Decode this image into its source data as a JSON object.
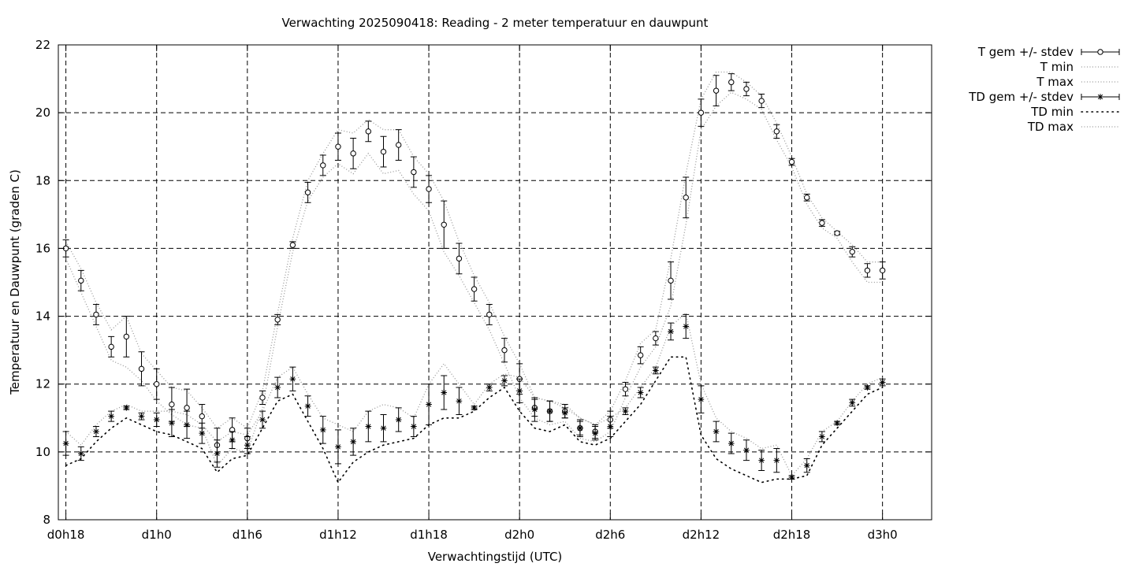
{
  "chart_data": {
    "type": "line",
    "title": "Verwachting 2025090418: Reading - 2 meter temperatuur en dauwpunt",
    "xlabel": "Verwachtingstijd (UTC)",
    "ylabel": "Temperatuur en Dauwpunt (graden C)",
    "xlim": [
      17.5,
      75.25
    ],
    "ylim": [
      8,
      22
    ],
    "x_ticks": [
      {
        "x": 18,
        "label": "d0h18"
      },
      {
        "x": 24,
        "label": "d1h0"
      },
      {
        "x": 30,
        "label": "d1h6"
      },
      {
        "x": 36,
        "label": "d1h12"
      },
      {
        "x": 42,
        "label": "d1h18"
      },
      {
        "x": 48,
        "label": "d2h0"
      },
      {
        "x": 54,
        "label": "d2h6"
      },
      {
        "x": 60,
        "label": "d2h12"
      },
      {
        "x": 66,
        "label": "d2h18"
      },
      {
        "x": 72,
        "label": "d3h0"
      }
    ],
    "y_ticks": [
      8,
      10,
      12,
      14,
      16,
      18,
      20,
      22
    ],
    "grid": true,
    "legend_position": "outside-right",
    "x": [
      18,
      19,
      20,
      21,
      22,
      23,
      24,
      25,
      26,
      27,
      28,
      29,
      30,
      31,
      32,
      33,
      34,
      35,
      36,
      37,
      38,
      39,
      40,
      41,
      42,
      43,
      44,
      45,
      46,
      47,
      48,
      49,
      50,
      51,
      52,
      53,
      54,
      55,
      56,
      57,
      58,
      59,
      60,
      61,
      62,
      63,
      64,
      65,
      66,
      67,
      68,
      69,
      70,
      71,
      72
    ],
    "series": [
      {
        "name": "T gem +/- stdev",
        "marker": "circle",
        "errorbars": true,
        "values": [
          16.0,
          15.05,
          14.05,
          13.1,
          13.4,
          12.45,
          12.0,
          11.4,
          11.3,
          11.05,
          10.2,
          10.65,
          10.4,
          11.6,
          13.9,
          16.1,
          17.65,
          18.45,
          19.0,
          18.8,
          19.45,
          18.85,
          19.05,
          18.25,
          17.75,
          16.7,
          15.7,
          14.8,
          14.05,
          13.0,
          12.15,
          11.3,
          11.2,
          11.2,
          10.7,
          10.6,
          10.95,
          11.85,
          12.85,
          13.35,
          15.05,
          17.5,
          20.0,
          20.65,
          20.9,
          20.7,
          20.35,
          19.45,
          18.55,
          17.5,
          16.75,
          16.45,
          15.9,
          15.35,
          15.35
        ],
        "stdev": [
          0.25,
          0.3,
          0.3,
          0.3,
          0.6,
          0.5,
          0.45,
          0.5,
          0.55,
          0.35,
          0.5,
          0.35,
          0.3,
          0.2,
          0.15,
          0.1,
          0.3,
          0.3,
          0.4,
          0.45,
          0.3,
          0.45,
          0.45,
          0.45,
          0.4,
          0.7,
          0.45,
          0.35,
          0.3,
          0.35,
          0.45,
          0.25,
          0.3,
          0.2,
          0.25,
          0.2,
          0.25,
          0.2,
          0.25,
          0.2,
          0.55,
          0.6,
          0.4,
          0.45,
          0.25,
          0.2,
          0.2,
          0.2,
          0.1,
          0.1,
          0.1,
          0.05,
          0.15,
          0.2,
          0.25
        ]
      },
      {
        "name": "T min",
        "style": "dotted",
        "values": [
          15.7,
          14.7,
          13.7,
          12.7,
          12.5,
          12.1,
          11.5,
          11.1,
          10.8,
          10.7,
          9.6,
          10.1,
          10.0,
          11.3,
          13.7,
          15.9,
          17.4,
          18.1,
          18.5,
          18.2,
          18.8,
          18.2,
          18.3,
          17.6,
          17.1,
          15.9,
          15.2,
          14.4,
          13.6,
          12.6,
          11.6,
          11.0,
          10.8,
          10.9,
          10.4,
          10.3,
          10.6,
          11.6,
          12.5,
          13.1,
          14.3,
          16.7,
          19.5,
          20.2,
          20.6,
          20.4,
          20.1,
          19.2,
          18.4,
          17.3,
          16.6,
          16.3,
          15.6,
          15.0,
          15.0
        ]
      },
      {
        "name": "T max",
        "style": "dotted",
        "values": [
          16.2,
          15.4,
          14.4,
          13.6,
          14.0,
          12.9,
          12.4,
          11.9,
          11.8,
          11.3,
          10.7,
          11.0,
          10.7,
          11.8,
          14.1,
          16.3,
          18.0,
          18.8,
          19.5,
          19.4,
          19.8,
          19.5,
          19.5,
          18.7,
          18.2,
          17.4,
          16.2,
          15.2,
          14.4,
          13.4,
          12.6,
          11.6,
          11.5,
          11.4,
          11.0,
          10.8,
          11.2,
          12.1,
          13.2,
          13.6,
          15.7,
          18.2,
          20.4,
          21.2,
          21.2,
          20.9,
          20.5,
          19.7,
          18.7,
          17.6,
          16.9,
          16.5,
          16.1,
          15.6,
          15.6
        ]
      },
      {
        "name": "TD gem +/- stdev",
        "marker": "star",
        "errorbars": true,
        "values": [
          10.25,
          9.95,
          10.6,
          11.05,
          11.3,
          11.05,
          10.95,
          10.85,
          10.8,
          10.55,
          9.95,
          10.35,
          10.2,
          10.95,
          11.9,
          12.15,
          11.35,
          10.65,
          10.15,
          10.3,
          10.75,
          10.7,
          10.95,
          10.75,
          11.4,
          11.75,
          11.5,
          11.3,
          11.9,
          12.1,
          11.8,
          11.25,
          11.2,
          11.15,
          10.7,
          10.55,
          10.75,
          11.2,
          11.75,
          12.4,
          13.55,
          13.7,
          11.55,
          10.6,
          10.25,
          10.05,
          9.75,
          9.75,
          9.25,
          9.6,
          10.45,
          10.85,
          11.45,
          11.9,
          12.05
        ],
        "stdev": [
          0.35,
          0.2,
          0.15,
          0.15,
          0.05,
          0.1,
          0.2,
          0.4,
          0.4,
          0.3,
          0.4,
          0.25,
          0.25,
          0.25,
          0.3,
          0.35,
          0.3,
          0.4,
          0.5,
          0.4,
          0.45,
          0.4,
          0.35,
          0.3,
          0.6,
          0.5,
          0.4,
          0.05,
          0.1,
          0.15,
          0.35,
          0.35,
          0.3,
          0.15,
          0.2,
          0.2,
          0.3,
          0.1,
          0.15,
          0.1,
          0.25,
          0.35,
          0.4,
          0.3,
          0.3,
          0.3,
          0.3,
          0.35,
          0.05,
          0.2,
          0.15,
          0.05,
          0.1,
          0.05,
          0.1
        ]
      },
      {
        "name": "TD min",
        "style": "sparse-dotted",
        "values": [
          9.6,
          9.8,
          10.3,
          10.7,
          11.0,
          10.8,
          10.6,
          10.5,
          10.3,
          10.1,
          9.4,
          9.8,
          9.9,
          10.7,
          11.5,
          11.7,
          10.9,
          10.1,
          9.1,
          9.7,
          10.0,
          10.2,
          10.3,
          10.4,
          10.8,
          11.0,
          11.0,
          11.2,
          11.6,
          11.9,
          11.2,
          10.7,
          10.6,
          10.8,
          10.3,
          10.2,
          10.4,
          10.9,
          11.4,
          12.1,
          12.8,
          12.8,
          10.5,
          9.8,
          9.5,
          9.3,
          9.1,
          9.2,
          9.2,
          9.3,
          10.2,
          10.7,
          11.2,
          11.7,
          11.9
        ]
      },
      {
        "name": "TD max",
        "style": "dotted",
        "values": [
          10.6,
          10.2,
          10.8,
          11.2,
          11.4,
          11.2,
          11.2,
          11.2,
          11.1,
          10.8,
          10.3,
          10.6,
          10.5,
          11.2,
          12.2,
          12.5,
          11.7,
          11.0,
          10.8,
          10.6,
          11.2,
          11.4,
          11.3,
          11.0,
          12.0,
          12.6,
          12.0,
          11.4,
          12.0,
          12.3,
          12.2,
          11.6,
          11.5,
          11.3,
          11.0,
          10.8,
          11.0,
          11.3,
          11.9,
          12.5,
          13.7,
          14.1,
          12.0,
          11.0,
          10.6,
          10.4,
          10.1,
          10.2,
          9.3,
          9.8,
          10.6,
          10.9,
          11.5,
          12.0,
          12.2
        ]
      }
    ]
  }
}
